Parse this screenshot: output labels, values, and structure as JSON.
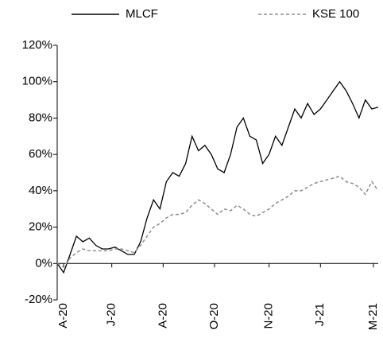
{
  "chart_data": {
    "type": "line",
    "x": [
      0,
      2,
      4,
      6,
      8,
      10,
      12,
      14,
      16,
      18,
      20,
      22,
      24,
      26,
      28,
      30,
      32,
      34,
      36,
      38,
      40,
      42,
      44,
      46,
      48,
      50,
      52,
      54,
      56,
      58,
      60,
      62,
      64,
      66,
      68,
      70,
      72,
      74,
      76,
      78,
      80,
      82,
      84,
      86,
      88,
      90,
      92,
      94,
      96,
      98,
      100
    ],
    "series": [
      {
        "name": "MLCF",
        "color": "#000000",
        "dash": false,
        "values": [
          0,
          -5,
          5,
          15,
          12,
          14,
          10,
          8,
          8,
          9,
          7,
          5,
          5,
          12,
          25,
          35,
          30,
          45,
          50,
          48,
          55,
          70,
          62,
          65,
          60,
          52,
          50,
          60,
          75,
          80,
          70,
          68,
          55,
          60,
          70,
          65,
          75,
          85,
          80,
          88,
          82,
          85,
          90,
          95,
          100,
          95,
          88,
          80,
          90,
          85,
          86
        ]
      },
      {
        "name": "KSE 100",
        "color": "#8c8c8c",
        "dash": true,
        "values": [
          0,
          -2,
          3,
          6,
          8,
          7,
          7,
          7,
          7,
          8,
          8,
          7,
          6,
          10,
          15,
          20,
          22,
          25,
          27,
          27,
          28,
          32,
          35,
          33,
          30,
          27,
          30,
          29,
          32,
          30,
          27,
          26,
          28,
          30,
          33,
          35,
          37,
          40,
          40,
          42,
          44,
          45,
          46,
          47,
          48,
          45,
          44,
          42,
          38,
          45,
          40
        ]
      }
    ],
    "xlim": [
      0,
      100
    ],
    "xticks": [
      {
        "value": 2,
        "label": "A-20"
      },
      {
        "value": 17,
        "label": "J-20"
      },
      {
        "value": 33,
        "label": "A-20"
      },
      {
        "value": 49,
        "label": "O-20"
      },
      {
        "value": 66,
        "label": "N-20"
      },
      {
        "value": 82,
        "label": "J-21"
      },
      {
        "value": 98.5,
        "label": "M-21"
      }
    ],
    "ylim": [
      -20,
      120
    ],
    "yticks": [
      {
        "value": -20,
        "label": "-20%"
      },
      {
        "value": 0,
        "label": "0%"
      },
      {
        "value": 20,
        "label": "20%"
      },
      {
        "value": 40,
        "label": "40%"
      },
      {
        "value": 60,
        "label": "60%"
      },
      {
        "value": 80,
        "label": "80%"
      },
      {
        "value": 100,
        "label": "100%"
      },
      {
        "value": 120,
        "label": "120%"
      }
    ]
  }
}
